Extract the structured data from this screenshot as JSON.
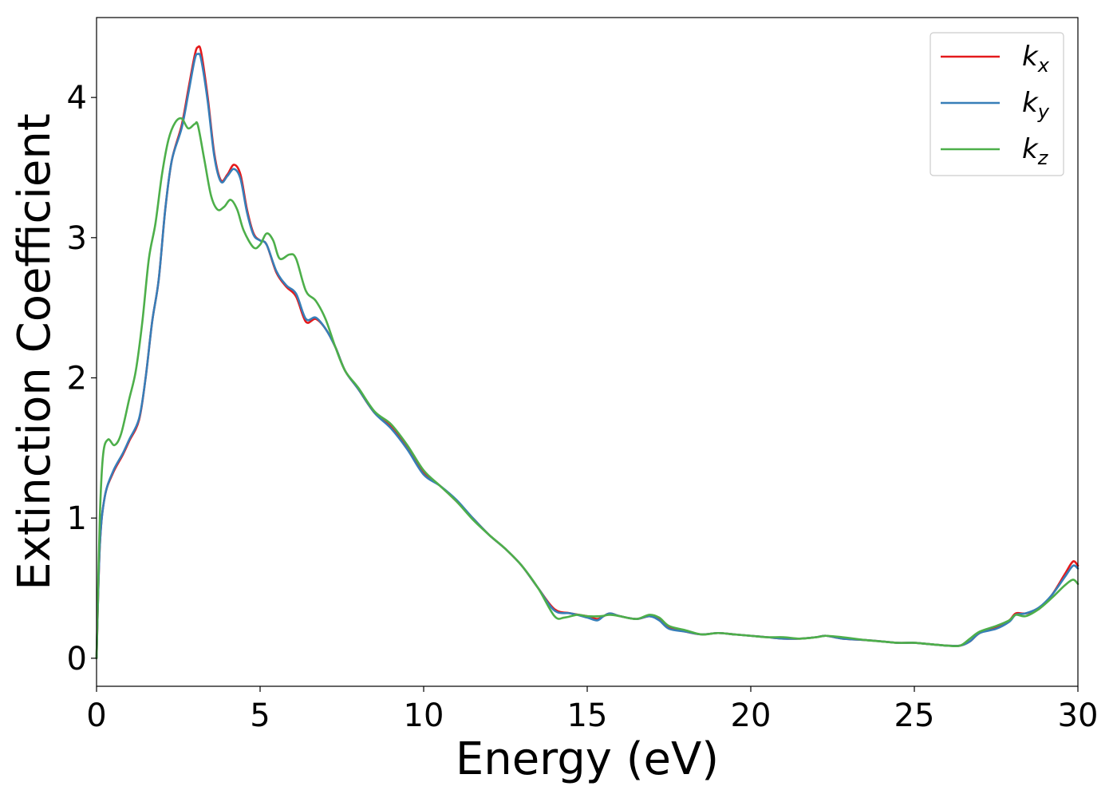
{
  "chart_data": {
    "type": "line",
    "xlabel": "Energy (eV)",
    "ylabel": "Extinction Coefficient",
    "xlim": [
      0,
      30
    ],
    "ylim": [
      -0.2,
      4.57
    ],
    "xticks": [
      0,
      5,
      10,
      15,
      20,
      25,
      30
    ],
    "yticks": [
      0,
      1,
      2,
      3,
      4
    ],
    "legend_position": "top-right",
    "grid": false,
    "series": [
      {
        "name": "k_x",
        "label_main": "k",
        "label_sub": "x",
        "color": "#e41a1c",
        "points": [
          [
            0,
            0.0
          ],
          [
            0.1,
            0.8
          ],
          [
            0.25,
            1.15
          ],
          [
            0.5,
            1.32
          ],
          [
            0.8,
            1.45
          ],
          [
            1.0,
            1.55
          ],
          [
            1.3,
            1.7
          ],
          [
            1.5,
            2.0
          ],
          [
            1.7,
            2.4
          ],
          [
            1.9,
            2.7
          ],
          [
            2.1,
            3.2
          ],
          [
            2.3,
            3.55
          ],
          [
            2.6,
            3.8
          ],
          [
            2.8,
            4.05
          ],
          [
            3.0,
            4.3
          ],
          [
            3.1,
            4.36
          ],
          [
            3.2,
            4.32
          ],
          [
            3.4,
            4.0
          ],
          [
            3.6,
            3.6
          ],
          [
            3.8,
            3.41
          ],
          [
            4.0,
            3.45
          ],
          [
            4.2,
            3.52
          ],
          [
            4.4,
            3.45
          ],
          [
            4.6,
            3.2
          ],
          [
            4.8,
            3.03
          ],
          [
            5.0,
            2.98
          ],
          [
            5.2,
            2.95
          ],
          [
            5.5,
            2.75
          ],
          [
            5.8,
            2.65
          ],
          [
            6.1,
            2.58
          ],
          [
            6.4,
            2.4
          ],
          [
            6.7,
            2.42
          ],
          [
            7.0,
            2.35
          ],
          [
            7.3,
            2.22
          ],
          [
            7.6,
            2.05
          ],
          [
            8.0,
            1.92
          ],
          [
            8.5,
            1.75
          ],
          [
            9.0,
            1.65
          ],
          [
            9.5,
            1.5
          ],
          [
            10.0,
            1.32
          ],
          [
            10.5,
            1.23
          ],
          [
            11.0,
            1.12
          ],
          [
            11.5,
            1.0
          ],
          [
            12.0,
            0.88
          ],
          [
            12.5,
            0.78
          ],
          [
            13.0,
            0.66
          ],
          [
            13.5,
            0.5
          ],
          [
            14.0,
            0.35
          ],
          [
            14.5,
            0.32
          ],
          [
            15.0,
            0.3
          ],
          [
            15.3,
            0.28
          ],
          [
            15.5,
            0.3
          ],
          [
            15.7,
            0.32
          ],
          [
            16.0,
            0.3
          ],
          [
            16.5,
            0.28
          ],
          [
            16.9,
            0.3
          ],
          [
            17.2,
            0.28
          ],
          [
            17.5,
            0.22
          ],
          [
            18.0,
            0.19
          ],
          [
            18.5,
            0.17
          ],
          [
            19.0,
            0.18
          ],
          [
            19.5,
            0.17
          ],
          [
            20.0,
            0.16
          ],
          [
            20.5,
            0.15
          ],
          [
            21.0,
            0.14
          ],
          [
            21.5,
            0.14
          ],
          [
            22.0,
            0.15
          ],
          [
            22.3,
            0.16
          ],
          [
            22.8,
            0.14
          ],
          [
            23.5,
            0.13
          ],
          [
            24.0,
            0.12
          ],
          [
            24.5,
            0.11
          ],
          [
            25.0,
            0.11
          ],
          [
            25.5,
            0.1
          ],
          [
            26.0,
            0.09
          ],
          [
            26.4,
            0.09
          ],
          [
            26.7,
            0.12
          ],
          [
            27.0,
            0.18
          ],
          [
            27.5,
            0.22
          ],
          [
            27.9,
            0.27
          ],
          [
            28.1,
            0.32
          ],
          [
            28.4,
            0.32
          ],
          [
            28.8,
            0.35
          ],
          [
            29.2,
            0.45
          ],
          [
            29.6,
            0.6
          ],
          [
            29.85,
            0.69
          ],
          [
            30.0,
            0.66
          ]
        ]
      },
      {
        "name": "k_y",
        "label_main": "k",
        "label_sub": "y",
        "color": "#377eb8",
        "points": [
          [
            0,
            0.0
          ],
          [
            0.1,
            0.8
          ],
          [
            0.25,
            1.15
          ],
          [
            0.5,
            1.33
          ],
          [
            0.8,
            1.46
          ],
          [
            1.0,
            1.56
          ],
          [
            1.3,
            1.71
          ],
          [
            1.5,
            2.0
          ],
          [
            1.7,
            2.4
          ],
          [
            1.9,
            2.7
          ],
          [
            2.1,
            3.2
          ],
          [
            2.3,
            3.55
          ],
          [
            2.6,
            3.78
          ],
          [
            2.8,
            4.02
          ],
          [
            3.0,
            4.27
          ],
          [
            3.1,
            4.31
          ],
          [
            3.2,
            4.27
          ],
          [
            3.4,
            3.97
          ],
          [
            3.6,
            3.58
          ],
          [
            3.8,
            3.4
          ],
          [
            4.0,
            3.44
          ],
          [
            4.2,
            3.49
          ],
          [
            4.4,
            3.42
          ],
          [
            4.6,
            3.18
          ],
          [
            4.8,
            3.02
          ],
          [
            5.0,
            2.98
          ],
          [
            5.2,
            2.95
          ],
          [
            5.5,
            2.76
          ],
          [
            5.8,
            2.66
          ],
          [
            6.1,
            2.6
          ],
          [
            6.4,
            2.42
          ],
          [
            6.7,
            2.43
          ],
          [
            7.0,
            2.35
          ],
          [
            7.3,
            2.22
          ],
          [
            7.6,
            2.05
          ],
          [
            8.0,
            1.92
          ],
          [
            8.5,
            1.75
          ],
          [
            9.0,
            1.64
          ],
          [
            9.5,
            1.49
          ],
          [
            10.0,
            1.31
          ],
          [
            10.5,
            1.23
          ],
          [
            11.0,
            1.13
          ],
          [
            11.5,
            1.0
          ],
          [
            12.0,
            0.88
          ],
          [
            12.5,
            0.78
          ],
          [
            13.0,
            0.66
          ],
          [
            13.5,
            0.5
          ],
          [
            14.0,
            0.34
          ],
          [
            14.5,
            0.32
          ],
          [
            15.0,
            0.29
          ],
          [
            15.3,
            0.27
          ],
          [
            15.5,
            0.3
          ],
          [
            15.7,
            0.32
          ],
          [
            16.0,
            0.3
          ],
          [
            16.5,
            0.28
          ],
          [
            16.9,
            0.3
          ],
          [
            17.2,
            0.27
          ],
          [
            17.5,
            0.21
          ],
          [
            18.0,
            0.19
          ],
          [
            18.5,
            0.17
          ],
          [
            19.0,
            0.18
          ],
          [
            19.5,
            0.17
          ],
          [
            20.0,
            0.16
          ],
          [
            20.5,
            0.15
          ],
          [
            21.0,
            0.14
          ],
          [
            21.5,
            0.14
          ],
          [
            22.0,
            0.15
          ],
          [
            22.3,
            0.16
          ],
          [
            22.8,
            0.14
          ],
          [
            23.5,
            0.13
          ],
          [
            24.0,
            0.12
          ],
          [
            24.5,
            0.11
          ],
          [
            25.0,
            0.11
          ],
          [
            25.5,
            0.1
          ],
          [
            26.0,
            0.09
          ],
          [
            26.4,
            0.09
          ],
          [
            26.7,
            0.12
          ],
          [
            27.0,
            0.18
          ],
          [
            27.5,
            0.21
          ],
          [
            27.9,
            0.26
          ],
          [
            28.1,
            0.31
          ],
          [
            28.4,
            0.32
          ],
          [
            28.8,
            0.36
          ],
          [
            29.2,
            0.45
          ],
          [
            29.6,
            0.58
          ],
          [
            29.85,
            0.66
          ],
          [
            30.0,
            0.64
          ]
        ]
      },
      {
        "name": "k_z",
        "label_main": "k",
        "label_sub": "z",
        "color": "#4daf4a",
        "points": [
          [
            0,
            0.0
          ],
          [
            0.1,
            1.0
          ],
          [
            0.2,
            1.45
          ],
          [
            0.35,
            1.56
          ],
          [
            0.55,
            1.52
          ],
          [
            0.75,
            1.6
          ],
          [
            1.0,
            1.85
          ],
          [
            1.2,
            2.05
          ],
          [
            1.4,
            2.4
          ],
          [
            1.6,
            2.85
          ],
          [
            1.8,
            3.1
          ],
          [
            2.0,
            3.45
          ],
          [
            2.2,
            3.7
          ],
          [
            2.4,
            3.82
          ],
          [
            2.6,
            3.85
          ],
          [
            2.8,
            3.78
          ],
          [
            3.0,
            3.81
          ],
          [
            3.1,
            3.8
          ],
          [
            3.3,
            3.55
          ],
          [
            3.5,
            3.3
          ],
          [
            3.7,
            3.2
          ],
          [
            3.9,
            3.22
          ],
          [
            4.1,
            3.27
          ],
          [
            4.3,
            3.2
          ],
          [
            4.5,
            3.05
          ],
          [
            4.8,
            2.93
          ],
          [
            5.0,
            2.95
          ],
          [
            5.2,
            3.03
          ],
          [
            5.4,
            2.98
          ],
          [
            5.6,
            2.85
          ],
          [
            5.9,
            2.88
          ],
          [
            6.1,
            2.85
          ],
          [
            6.4,
            2.62
          ],
          [
            6.7,
            2.55
          ],
          [
            7.0,
            2.42
          ],
          [
            7.3,
            2.22
          ],
          [
            7.6,
            2.05
          ],
          [
            8.0,
            1.93
          ],
          [
            8.5,
            1.76
          ],
          [
            9.0,
            1.67
          ],
          [
            9.5,
            1.52
          ],
          [
            10.0,
            1.34
          ],
          [
            10.5,
            1.23
          ],
          [
            11.0,
            1.12
          ],
          [
            11.5,
            0.99
          ],
          [
            12.0,
            0.88
          ],
          [
            12.5,
            0.78
          ],
          [
            13.0,
            0.66
          ],
          [
            13.5,
            0.5
          ],
          [
            14.0,
            0.3
          ],
          [
            14.3,
            0.29
          ],
          [
            14.7,
            0.31
          ],
          [
            15.0,
            0.3
          ],
          [
            15.4,
            0.3
          ],
          [
            15.7,
            0.31
          ],
          [
            16.0,
            0.3
          ],
          [
            16.5,
            0.28
          ],
          [
            16.9,
            0.31
          ],
          [
            17.2,
            0.29
          ],
          [
            17.5,
            0.23
          ],
          [
            18.0,
            0.2
          ],
          [
            18.5,
            0.17
          ],
          [
            19.0,
            0.18
          ],
          [
            19.5,
            0.17
          ],
          [
            20.0,
            0.16
          ],
          [
            20.5,
            0.15
          ],
          [
            21.0,
            0.15
          ],
          [
            21.5,
            0.14
          ],
          [
            22.0,
            0.15
          ],
          [
            22.3,
            0.16
          ],
          [
            22.8,
            0.15
          ],
          [
            23.5,
            0.13
          ],
          [
            24.0,
            0.12
          ],
          [
            24.5,
            0.11
          ],
          [
            25.0,
            0.11
          ],
          [
            25.5,
            0.1
          ],
          [
            26.0,
            0.09
          ],
          [
            26.4,
            0.09
          ],
          [
            26.7,
            0.14
          ],
          [
            27.0,
            0.19
          ],
          [
            27.5,
            0.23
          ],
          [
            27.9,
            0.27
          ],
          [
            28.1,
            0.31
          ],
          [
            28.4,
            0.3
          ],
          [
            28.8,
            0.35
          ],
          [
            29.2,
            0.43
          ],
          [
            29.6,
            0.52
          ],
          [
            29.85,
            0.56
          ],
          [
            30.0,
            0.53
          ]
        ]
      }
    ]
  }
}
